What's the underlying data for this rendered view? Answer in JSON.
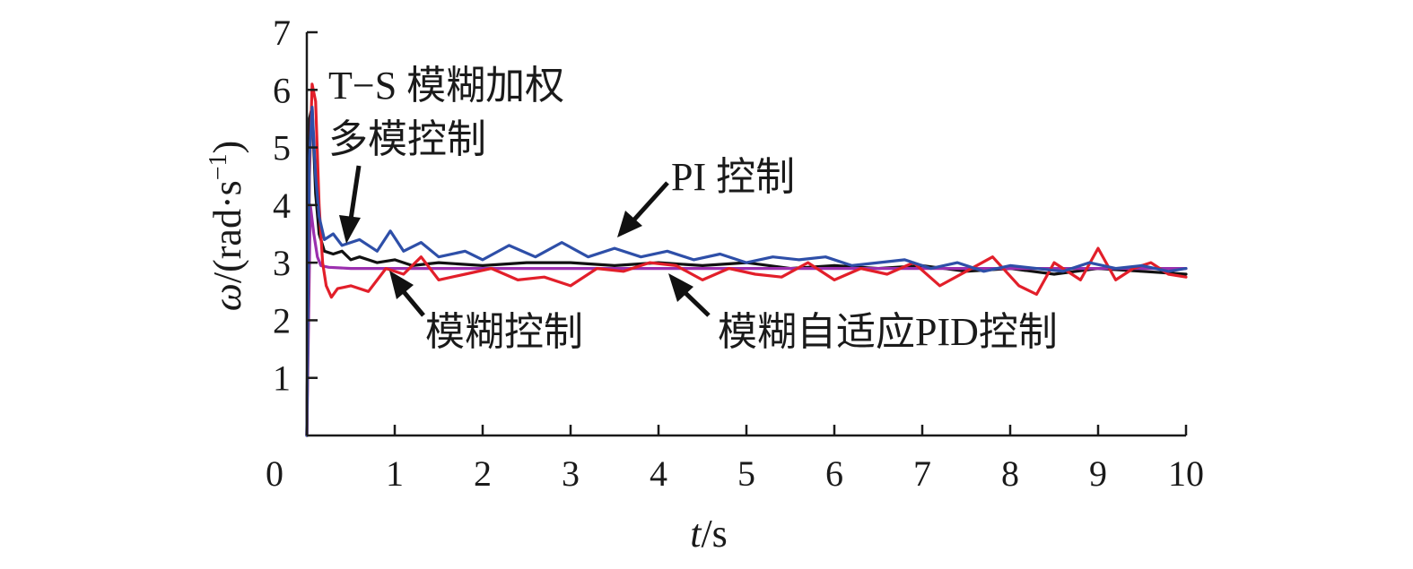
{
  "chart_data": {
    "type": "line",
    "title": "",
    "xlabel_italic": "t",
    "xlabel_unit": "/s",
    "ylabel_symbol": "ω",
    "ylabel_unit": "/(rad·s",
    "ylabel_exp": "−1",
    "ylabel_close": ")",
    "xlim": [
      0,
      10
    ],
    "ylim": [
      0,
      7
    ],
    "xticks": [
      "0",
      "1",
      "2",
      "3",
      "4",
      "5",
      "6",
      "7",
      "8",
      "9",
      "10"
    ],
    "yticks": [
      "1",
      "2",
      "3",
      "4",
      "5",
      "6",
      "7"
    ],
    "series": [
      {
        "name": "T−S 模糊加权多模控制",
        "color": "#111111",
        "x": [
          0,
          0.03,
          0.06,
          0.1,
          0.14,
          0.2,
          0.3,
          0.4,
          0.5,
          0.6,
          0.8,
          1.0,
          1.2,
          1.5,
          2.0,
          2.5,
          3.0,
          3.5,
          4.0,
          4.5,
          5.0,
          5.5,
          6.0,
          6.5,
          7.0,
          7.5,
          8.0,
          8.5,
          9.0,
          9.5,
          10.0
        ],
        "y": [
          0,
          5.5,
          5.7,
          4.2,
          3.5,
          3.2,
          3.15,
          3.2,
          3.05,
          3.1,
          3.0,
          3.05,
          2.95,
          3.0,
          2.95,
          3.0,
          3.0,
          2.95,
          3.0,
          2.95,
          3.0,
          2.9,
          2.95,
          2.9,
          2.95,
          2.85,
          2.9,
          2.8,
          2.9,
          2.85,
          2.8
        ]
      },
      {
        "name": "模糊控制",
        "color": "#9b2fae",
        "x": [
          0,
          0.04,
          0.08,
          0.12,
          0.16,
          0.25,
          0.5,
          1.0,
          2.0,
          3.0,
          4.0,
          5.0,
          6.0,
          7.0,
          8.0,
          9.0,
          10.0
        ],
        "y": [
          0,
          4.0,
          3.5,
          3.1,
          2.95,
          2.92,
          2.9,
          2.9,
          2.9,
          2.9,
          2.9,
          2.9,
          2.9,
          2.9,
          2.9,
          2.9,
          2.9
        ]
      },
      {
        "name": "模糊自适应PID控制",
        "color": "#e21f2a",
        "x": [
          0,
          0.03,
          0.06,
          0.1,
          0.14,
          0.18,
          0.22,
          0.28,
          0.35,
          0.5,
          0.7,
          0.9,
          1.1,
          1.3,
          1.5,
          1.8,
          2.1,
          2.4,
          2.7,
          3.0,
          3.3,
          3.6,
          3.9,
          4.2,
          4.5,
          4.8,
          5.1,
          5.4,
          5.7,
          6.0,
          6.3,
          6.6,
          6.9,
          7.2,
          7.5,
          7.8,
          8.1,
          8.3,
          8.5,
          8.8,
          9.0,
          9.2,
          9.4,
          9.6,
          9.8,
          10.0
        ],
        "y": [
          0,
          4.5,
          6.1,
          5.8,
          4.0,
          3.0,
          2.6,
          2.4,
          2.55,
          2.6,
          2.5,
          2.9,
          2.8,
          3.1,
          2.7,
          2.8,
          2.9,
          2.7,
          2.75,
          2.6,
          2.9,
          2.85,
          3.0,
          2.95,
          2.7,
          2.9,
          2.8,
          2.75,
          3.0,
          2.7,
          2.9,
          2.8,
          3.0,
          2.6,
          2.85,
          3.1,
          2.6,
          2.45,
          3.0,
          2.7,
          3.25,
          2.7,
          2.9,
          3.0,
          2.8,
          2.75
        ]
      },
      {
        "name": "PI 控制",
        "color": "#2e4fa8",
        "x": [
          0,
          0.03,
          0.06,
          0.1,
          0.14,
          0.2,
          0.3,
          0.4,
          0.6,
          0.8,
          0.95,
          1.1,
          1.3,
          1.5,
          1.8,
          2.0,
          2.3,
          2.6,
          2.9,
          3.2,
          3.5,
          3.8,
          4.1,
          4.4,
          4.7,
          5.0,
          5.3,
          5.6,
          5.9,
          6.2,
          6.5,
          6.8,
          7.1,
          7.4,
          7.7,
          8.0,
          8.3,
          8.6,
          8.9,
          9.2,
          9.5,
          9.8,
          10.0
        ],
        "y": [
          0,
          4.8,
          5.7,
          4.5,
          3.8,
          3.4,
          3.5,
          3.3,
          3.4,
          3.2,
          3.55,
          3.2,
          3.35,
          3.1,
          3.2,
          3.05,
          3.3,
          3.1,
          3.35,
          3.1,
          3.25,
          3.1,
          3.2,
          3.05,
          3.15,
          3.0,
          3.1,
          3.05,
          3.1,
          2.95,
          3.0,
          3.05,
          2.9,
          3.0,
          2.85,
          2.95,
          2.9,
          2.85,
          3.0,
          2.9,
          2.95,
          2.85,
          2.9
        ]
      }
    ],
    "annotations": [
      {
        "id": "ts",
        "lines": [
          "T−S 模糊加权",
          "多模控制"
        ]
      },
      {
        "id": "pi",
        "lines": [
          "PI 控制"
        ]
      },
      {
        "id": "fuzzy",
        "lines": [
          "模糊控制"
        ]
      },
      {
        "id": "fpid",
        "lines": [
          "模糊自适应PID控制"
        ]
      }
    ],
    "grid": false,
    "legend": "none"
  }
}
